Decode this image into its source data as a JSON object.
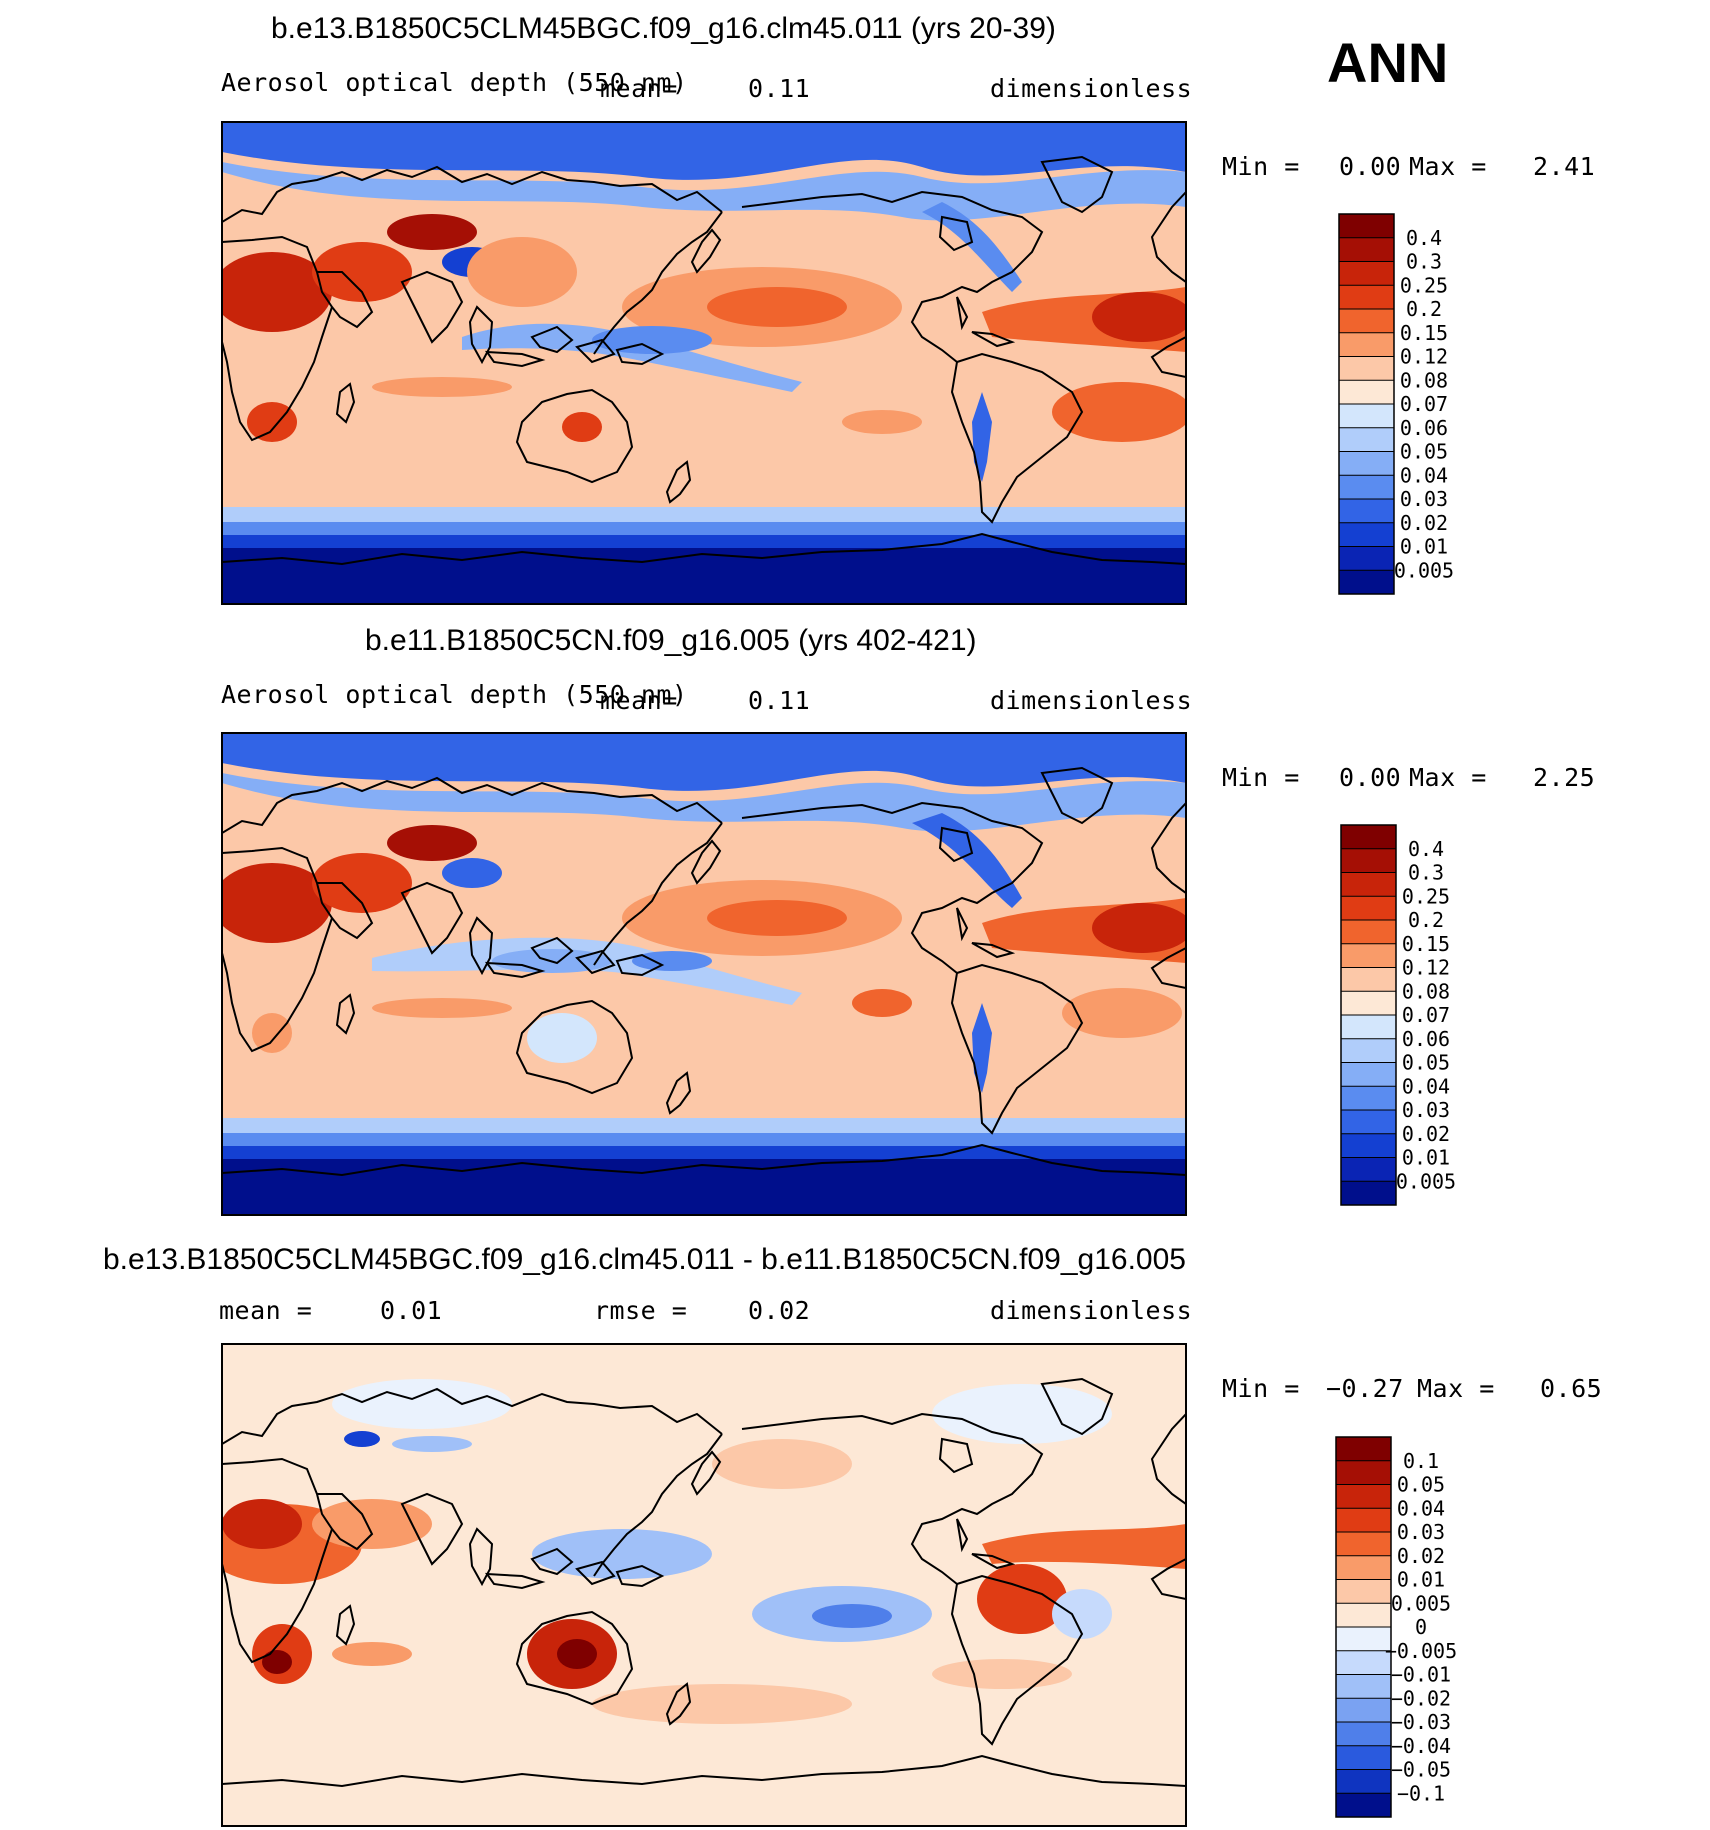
{
  "season": "ANN",
  "panels": [
    {
      "title": "b.e13.B1850C5CLM45BGC.f09_g16.clm45.011 (yrs 20-39)",
      "variable": "Aerosol optical depth (550 nm)",
      "mean_label": "mean=",
      "mean_value": "0.11",
      "units": "dimensionless",
      "min_label": "Min =",
      "min_value": "0.00",
      "max_label": "Max =",
      "max_value": "2.41",
      "colorbar_labels": [
        "0.4",
        "0.3",
        "0.25",
        "0.2",
        "0.15",
        "0.12",
        "0.08",
        "0.07",
        "0.06",
        "0.05",
        "0.04",
        "0.03",
        "0.02",
        "0.01",
        "0.005"
      ]
    },
    {
      "title": "b.e11.B1850C5CN.f09_g16.005 (yrs 402-421)",
      "variable": "Aerosol optical depth (550 nm)",
      "mean_label": "mean=",
      "mean_value": "0.11",
      "units": "dimensionless",
      "min_label": "Min =",
      "min_value": "0.00",
      "max_label": "Max =",
      "max_value": "2.25",
      "colorbar_labels": [
        "0.4",
        "0.3",
        "0.25",
        "0.2",
        "0.15",
        "0.12",
        "0.08",
        "0.07",
        "0.06",
        "0.05",
        "0.04",
        "0.03",
        "0.02",
        "0.01",
        "0.005"
      ]
    },
    {
      "title": "b.e13.B1850C5CLM45BGC.f09_g16.clm45.011 - b.e11.B1850C5CN.f09_g16.005",
      "mean_label": "mean =",
      "mean_value": "0.01",
      "rmse_label": "rmse =",
      "rmse_value": "0.02",
      "units": "dimensionless",
      "min_label": "Min =",
      "min_value": "−0.27",
      "max_label": "Max =",
      "max_value": "0.65",
      "colorbar_labels": [
        "0.1",
        "0.05",
        "0.04",
        "0.03",
        "0.02",
        "0.01",
        "0.005",
        "0",
        "−0.005",
        "−0.01",
        "−0.02",
        "−0.03",
        "−0.04",
        "−0.05",
        "−0.1"
      ]
    }
  ],
  "colors": {
    "seq": [
      "#7f0000",
      "#a50f05",
      "#c8240a",
      "#e03c14",
      "#f0642d",
      "#f99b69",
      "#fcc8a8",
      "#fde8d6",
      "#d3e6fc",
      "#b0cdfa",
      "#85aef6",
      "#5a8cf0",
      "#3264e6",
      "#1440d2",
      "#0a24b4",
      "#000f8c"
    ],
    "diff": [
      "#7f0000",
      "#a50f05",
      "#c8240a",
      "#e03c14",
      "#f0642d",
      "#f99b69",
      "#fcc8a8",
      "#fde8d6",
      "#eaf2fd",
      "#c6dafc",
      "#a0c0f8",
      "#7aa2f2",
      "#4f7fea",
      "#2a5ade",
      "#0f34c0",
      "#000f8c"
    ]
  }
}
